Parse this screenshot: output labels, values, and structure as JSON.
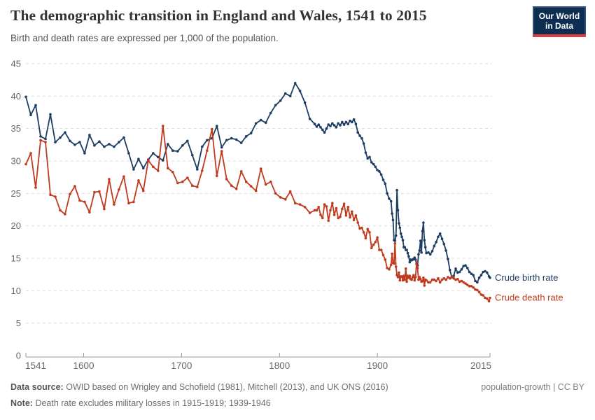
{
  "header": {
    "title": "The demographic transition in England and Wales, 1541 to 2015",
    "subtitle": "Birth and death rates are expressed per 1,000 of the population.",
    "logo": {
      "line1": "Our World",
      "line2": "in Data"
    }
  },
  "footer": {
    "source_label": "Data source:",
    "source_text": "OWID based on Wrigley and Schofield (1981), Mitchell (2013), and UK ONS (2016)",
    "note_label": "Note:",
    "note_text": "Death rate excludes military losses in 1915-1919; 1939-1946",
    "right_text": "population-growth | CC BY"
  },
  "colors": {
    "birth": "#1d3d63",
    "death": "#c03a1e",
    "grid": "#dbdbdb",
    "axis": "#999999",
    "tick_text": "#666666"
  },
  "chart_data": {
    "type": "line",
    "title": "The demographic transition in England and Wales, 1541 to 2015",
    "subtitle": "Birth and death rates are expressed per 1,000 of the population.",
    "xlabel": "",
    "ylabel": "",
    "ylim": [
      0,
      45
    ],
    "xlim": [
      1541,
      2015
    ],
    "grid": "horizontal-dashed",
    "legend_position": "right-end-of-lines",
    "yticks": [
      0,
      5,
      10,
      15,
      20,
      25,
      30,
      35,
      40,
      45
    ],
    "xticks": [
      1541,
      1600,
      1700,
      1800,
      1900,
      2015
    ],
    "x": [
      1541,
      1546,
      1551,
      1556,
      1561,
      1566,
      1571,
      1576,
      1581,
      1586,
      1591,
      1596,
      1601,
      1606,
      1611,
      1616,
      1621,
      1626,
      1631,
      1636,
      1641,
      1646,
      1651,
      1656,
      1661,
      1666,
      1671,
      1676,
      1681,
      1686,
      1691,
      1696,
      1701,
      1706,
      1711,
      1716,
      1721,
      1726,
      1731,
      1736,
      1741,
      1746,
      1751,
      1756,
      1761,
      1766,
      1771,
      1776,
      1781,
      1786,
      1791,
      1796,
      1801,
      1806,
      1811,
      1816,
      1821,
      1826,
      1831,
      1836,
      1838,
      1840,
      1842,
      1844,
      1846,
      1848,
      1850,
      1852,
      1854,
      1856,
      1858,
      1860,
      1862,
      1864,
      1866,
      1868,
      1870,
      1872,
      1874,
      1876,
      1878,
      1880,
      1882,
      1884,
      1886,
      1888,
      1890,
      1892,
      1894,
      1896,
      1898,
      1900,
      1902,
      1904,
      1906,
      1908,
      1910,
      1912,
      1914,
      1915,
      1916,
      1917,
      1918,
      1919,
      1920,
      1921,
      1922,
      1923,
      1924,
      1925,
      1926,
      1927,
      1928,
      1929,
      1930,
      1931,
      1932,
      1933,
      1934,
      1935,
      1936,
      1937,
      1938,
      1939,
      1940,
      1941,
      1942,
      1943,
      1944,
      1945,
      1946,
      1947,
      1948,
      1949,
      1950,
      1952,
      1954,
      1956,
      1958,
      1960,
      1962,
      1964,
      1966,
      1968,
      1970,
      1972,
      1974,
      1976,
      1978,
      1980,
      1982,
      1984,
      1986,
      1988,
      1990,
      1992,
      1994,
      1996,
      1998,
      2000,
      2002,
      2004,
      2006,
      2008,
      2010,
      2012,
      2014,
      2015
    ],
    "series": [
      {
        "id": "crude-birth-rate",
        "name": "Crude birth rate",
        "color": "#1d3d63",
        "values": [
          39.9,
          37.1,
          38.6,
          33.8,
          33.4,
          37.2,
          32.9,
          33.6,
          34.4,
          33.1,
          32.5,
          32.9,
          31.2,
          34.0,
          32.4,
          33.0,
          32.2,
          32.6,
          32.2,
          32.9,
          33.6,
          31.2,
          28.7,
          30.3,
          28.9,
          30.2,
          31.2,
          30.6,
          30.1,
          32.6,
          31.6,
          31.5,
          32.4,
          33.1,
          30.9,
          28.7,
          32.2,
          33.2,
          33.5,
          35.4,
          32.1,
          33.2,
          33.5,
          33.3,
          32.8,
          33.8,
          34.3,
          35.8,
          36.3,
          35.9,
          37.4,
          38.6,
          39.3,
          40.4,
          40.0,
          42.0,
          40.8,
          39.0,
          36.5,
          35.7,
          35.3,
          35.6,
          35.2,
          34.8,
          34.4,
          35.0,
          35.6,
          35.4,
          35.8,
          35.5,
          35.2,
          35.8,
          35.5,
          36.0,
          35.6,
          36.0,
          35.7,
          36.2,
          36.0,
          36.4,
          35.7,
          34.4,
          33.9,
          33.5,
          32.7,
          31.3,
          30.4,
          30.6,
          29.8,
          29.5,
          29.1,
          28.6,
          28.4,
          27.9,
          27.1,
          26.5,
          25.0,
          24.2,
          23.8,
          21.9,
          20.9,
          17.8,
          17.7,
          18.5,
          25.5,
          22.4,
          20.4,
          19.7,
          18.8,
          18.3,
          17.8,
          16.7,
          16.7,
          16.3,
          16.3,
          15.8,
          15.3,
          14.4,
          14.8,
          14.7,
          14.8,
          14.9,
          15.1,
          14.8,
          14.1,
          13.9,
          15.6,
          16.2,
          17.7,
          15.9,
          19.2,
          20.5,
          17.8,
          16.7,
          15.8,
          15.9,
          15.6,
          16.1,
          16.9,
          17.5,
          18.3,
          18.8,
          18.0,
          17.2,
          16.2,
          14.9,
          13.2,
          12.1,
          12.3,
          13.4,
          12.8,
          12.9,
          13.3,
          13.8,
          13.9,
          13.5,
          12.9,
          12.6,
          12.4,
          11.5,
          11.3,
          12.0,
          12.4,
          12.9,
          13.0,
          12.8,
          12.2,
          12.0
        ]
      },
      {
        "id": "crude-death-rate",
        "name": "Crude death rate",
        "color": "#c03a1e",
        "values": [
          29.5,
          31.2,
          25.9,
          33.2,
          32.9,
          24.8,
          24.5,
          22.4,
          21.8,
          24.9,
          26.1,
          23.9,
          23.7,
          22.1,
          25.2,
          25.3,
          22.6,
          27.2,
          23.3,
          25.6,
          27.6,
          23.5,
          23.7,
          27.0,
          25.4,
          30.1,
          29.1,
          28.5,
          35.4,
          28.9,
          28.3,
          26.6,
          26.8,
          27.4,
          26.2,
          26.0,
          28.5,
          31.6,
          34.9,
          27.7,
          31.5,
          27.2,
          26.2,
          25.7,
          28.4,
          26.8,
          26.1,
          25.4,
          28.8,
          26.4,
          26.8,
          25.0,
          24.4,
          24.1,
          25.3,
          23.5,
          23.3,
          22.9,
          22.0,
          22.4,
          22.4,
          22.9,
          21.7,
          21.2,
          23.3,
          23.0,
          20.8,
          22.4,
          23.5,
          21.7,
          22.7,
          21.2,
          21.4,
          22.6,
          23.4,
          21.6,
          22.9,
          21.3,
          22.2,
          20.9,
          21.6,
          20.5,
          19.6,
          19.7,
          19.0,
          18.1,
          19.5,
          19.0,
          16.6,
          17.1,
          17.5,
          18.2,
          16.3,
          16.3,
          15.5,
          14.8,
          13.5,
          13.3,
          14.0,
          15.7,
          14.3,
          14.2,
          17.3,
          13.7,
          12.4,
          12.1,
          12.8,
          11.6,
          12.2,
          12.2,
          11.6,
          12.3,
          11.7,
          13.4,
          11.4,
          12.3,
          12.0,
          12.3,
          11.8,
          11.7,
          12.1,
          12.4,
          11.6,
          12.1,
          14.4,
          13.5,
          11.7,
          12.1,
          11.8,
          11.4,
          11.5,
          12.0,
          10.8,
          11.7,
          11.6,
          11.3,
          11.3,
          11.7,
          11.7,
          11.5,
          11.9,
          11.3,
          11.7,
          11.9,
          11.7,
          12.1,
          11.9,
          12.2,
          11.9,
          11.7,
          11.8,
          11.4,
          11.5,
          11.3,
          11.1,
          10.9,
          10.7,
          10.7,
          10.5,
          10.2,
          10.1,
          9.8,
          9.4,
          9.3,
          8.9,
          8.8,
          8.4,
          8.9
        ]
      }
    ]
  }
}
